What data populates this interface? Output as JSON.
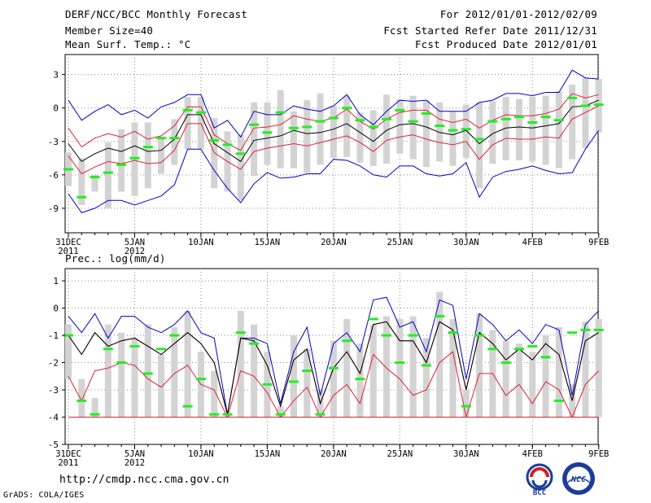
{
  "header": {
    "title": "DERF/NCC/BCC Monthly Forecast",
    "member_size": "Member Size=40",
    "variable": "Mean Surf. Temp.: °C",
    "period": "For 2012/01/01-2012/02/09",
    "start_date": "Fcst Started Refer Date 2011/12/31",
    "produced_date": "Fcst Produced Date 2012/01/01"
  },
  "precip_label": "Prec.: log(mm/d)",
  "footer": {
    "url": "http://cmdp.ncc.cma.gov.cn",
    "credit": "GrADS: COLA/IGES"
  },
  "logos": {
    "bcc": "BCC",
    "ncc": "NCC"
  },
  "colors": {
    "envelope": "#0000c8",
    "spread": "#e0203a",
    "mean": "#000000",
    "obs": "#22ee22",
    "bar": "#d3d3d3",
    "grid": "#888888"
  },
  "chart_data": [
    {
      "type": "line",
      "title": "Mean Surf. Temp.: °C",
      "x_days": [
        0,
        1,
        2,
        3,
        4,
        5,
        6,
        7,
        8,
        9,
        10,
        11,
        12,
        13,
        14,
        15,
        16,
        17,
        18,
        19,
        20,
        21,
        22,
        23,
        24,
        25,
        26,
        27,
        28,
        29,
        30,
        31,
        32,
        33,
        34,
        35,
        36,
        37,
        38,
        39,
        40
      ],
      "x_ticks": [
        {
          "day": 0,
          "label": "31DEC",
          "sublabel": "2011"
        },
        {
          "day": 5,
          "label": "5JAN",
          "sublabel": "2012"
        },
        {
          "day": 10,
          "label": "10JAN",
          "sublabel": ""
        },
        {
          "day": 15,
          "label": "15JAN",
          "sublabel": ""
        },
        {
          "day": 20,
          "label": "20JAN",
          "sublabel": ""
        },
        {
          "day": 25,
          "label": "25JAN",
          "sublabel": ""
        },
        {
          "day": 30,
          "label": "30JAN",
          "sublabel": ""
        },
        {
          "day": 35,
          "label": "4FEB",
          "sublabel": ""
        },
        {
          "day": 40,
          "label": "9FEB",
          "sublabel": ""
        }
      ],
      "yticks": [
        3,
        0,
        -3,
        -6,
        -9
      ],
      "ylim": [
        -11.2,
        4.8
      ],
      "series": [
        {
          "name": "ensemble max",
          "color": "#0000c8",
          "values": [
            0.7,
            -1.1,
            -0.3,
            0.3,
            -0.6,
            -0.2,
            -0.9,
            0.1,
            0.5,
            1.2,
            1.2,
            -1.8,
            -1.1,
            -2.6,
            -0.3,
            -0.6,
            -0.6,
            0.2,
            -0.1,
            -0.3,
            0.2,
            1.2,
            -0.6,
            -1.5,
            -0.3,
            0.7,
            0.6,
            0.7,
            -0.3,
            -0.3,
            -0.3,
            0.5,
            0.7,
            1.3,
            1.3,
            1.1,
            1.4,
            1.4,
            3.4,
            2.7,
            2.6
          ]
        },
        {
          "name": "ensemble min",
          "color": "#0000c8",
          "values": [
            -7.7,
            -9.4,
            -9.0,
            -8.3,
            -8.3,
            -8.7,
            -8.3,
            -7.9,
            -6.9,
            -3.7,
            -3.7,
            -5.6,
            -7.2,
            -8.5,
            -6.8,
            -5.8,
            -6.3,
            -6.2,
            -5.9,
            -5.9,
            -4.6,
            -4.7,
            -5.2,
            -6.0,
            -6.2,
            -5.2,
            -5.2,
            -5.9,
            -6.1,
            -5.9,
            -4.9,
            -8.0,
            -6.2,
            -5.7,
            -5.5,
            -5.2,
            -5.6,
            -5.9,
            -5.8,
            -3.7,
            -2.0
          ]
        },
        {
          "name": "upper spread",
          "color": "#e0203a",
          "values": [
            -1.8,
            -3.5,
            -2.7,
            -2.3,
            -2.6,
            -2.1,
            -2.8,
            -2.5,
            -1.6,
            0.1,
            0.1,
            -2.4,
            -3.2,
            -3.8,
            -1.8,
            -1.7,
            -1.5,
            -0.7,
            -1.0,
            -1.2,
            -0.9,
            -0.1,
            -1.2,
            -1.9,
            -1.0,
            -0.4,
            -0.2,
            -0.2,
            -1.0,
            -1.3,
            -1.0,
            -1.8,
            -1.1,
            -0.6,
            -0.7,
            -0.7,
            -0.5,
            -0.1,
            1.3,
            0.9,
            1.2
          ]
        },
        {
          "name": "lower spread",
          "color": "#e0203a",
          "values": [
            -4.3,
            -5.9,
            -5.3,
            -4.8,
            -5.0,
            -4.7,
            -5.0,
            -4.9,
            -3.8,
            -1.4,
            -1.4,
            -4.0,
            -4.8,
            -5.5,
            -3.9,
            -3.6,
            -3.4,
            -3.2,
            -3.4,
            -3.1,
            -2.8,
            -2.5,
            -3.1,
            -3.9,
            -2.9,
            -2.6,
            -2.4,
            -2.8,
            -3.1,
            -3.3,
            -3.0,
            -4.6,
            -3.3,
            -2.7,
            -2.8,
            -2.8,
            -2.6,
            -2.7,
            -1.0,
            -0.4,
            0.2
          ]
        },
        {
          "name": "ensemble mean",
          "color": "#000000",
          "values": [
            -3.2,
            -4.8,
            -4.1,
            -3.6,
            -3.9,
            -3.4,
            -3.9,
            -3.8,
            -2.8,
            -0.6,
            -0.6,
            -3.2,
            -4.0,
            -4.8,
            -2.9,
            -2.7,
            -2.5,
            -2.0,
            -2.3,
            -2.2,
            -1.9,
            -1.4,
            -2.2,
            -3.0,
            -2.0,
            -1.5,
            -1.4,
            -1.7,
            -2.2,
            -2.4,
            -2.0,
            -3.2,
            -2.3,
            -1.8,
            -1.7,
            -1.8,
            -1.6,
            -1.4,
            0.1,
            0.2,
            0.7
          ]
        },
        {
          "name": "observation",
          "color": "#22ee22",
          "values": [
            -5.5,
            -8.0,
            -6.2,
            -5.8,
            -5.1,
            -4.5,
            -3.5,
            -2.7,
            -2.7,
            -0.2,
            -0.4,
            -2.9,
            -3.3,
            -4.1,
            -1.5,
            -2.2,
            -0.4,
            -1.8,
            -1.7,
            -1.2,
            -0.9,
            0.0,
            -1.1,
            -1.7,
            -1.0,
            -0.2,
            -1.2,
            -0.5,
            -1.6,
            -2.0,
            -1.9,
            -2.8,
            -1.2,
            -1.0,
            -0.8,
            -1.3,
            -0.8,
            -1.1,
            0.9,
            0.2,
            0.3
          ]
        }
      ],
      "bars": {
        "lo": [
          -7.0,
          -8.7,
          -7.5,
          -9.0,
          -7.5,
          -7.9,
          -7.2,
          -5.9,
          -5.1,
          -3.7,
          -3.7,
          -7.2,
          -7.5,
          -8.3,
          -6.1,
          -5.1,
          -5.4,
          -5.4,
          -5.8,
          -5.1,
          -4.5,
          -4.4,
          -4.9,
          -5.2,
          -5.0,
          -4.1,
          -4.6,
          -5.3,
          -4.8,
          -5.2,
          -4.5,
          -7.2,
          -5.0,
          -4.7,
          -4.7,
          -4.8,
          -5.1,
          -5.4,
          -4.6,
          -3.6,
          -2.2
        ],
        "hi": [
          -4.0,
          -4.5,
          -6.0,
          -3.1,
          -1.9,
          -1.3,
          -1.3,
          -2.6,
          -1.0,
          1.0,
          1.0,
          -0.9,
          -2.1,
          -2.4,
          0.5,
          0.5,
          1.6,
          -0.3,
          0.7,
          1.3,
          0.2,
          1.1,
          -0.4,
          -0.2,
          1.2,
          0.8,
          1.1,
          0.7,
          0.5,
          -0.3,
          0.3,
          0.5,
          0.6,
          1.0,
          0.8,
          1.0,
          1.1,
          1.5,
          2.1,
          2.7,
          2.6
        ]
      }
    },
    {
      "type": "line",
      "title": "Prec.: log(mm/d)",
      "x_days": [
        0,
        1,
        2,
        3,
        4,
        5,
        6,
        7,
        8,
        9,
        10,
        11,
        12,
        13,
        14,
        15,
        16,
        17,
        18,
        19,
        20,
        21,
        22,
        23,
        24,
        25,
        26,
        27,
        28,
        29,
        30,
        31,
        32,
        33,
        34,
        35,
        36,
        37,
        38,
        39,
        40
      ],
      "x_ticks": [
        {
          "day": 0,
          "label": "31DEC",
          "sublabel": "2011"
        },
        {
          "day": 5,
          "label": "5JAN",
          "sublabel": "2012"
        },
        {
          "day": 10,
          "label": "10JAN",
          "sublabel": ""
        },
        {
          "day": 15,
          "label": "15JAN",
          "sublabel": ""
        },
        {
          "day": 20,
          "label": "20JAN",
          "sublabel": ""
        },
        {
          "day": 25,
          "label": "25JAN",
          "sublabel": ""
        },
        {
          "day": 30,
          "label": "30JAN",
          "sublabel": ""
        },
        {
          "day": 35,
          "label": "4FEB",
          "sublabel": ""
        },
        {
          "day": 40,
          "label": "9FEB",
          "sublabel": ""
        }
      ],
      "yticks": [
        1,
        0,
        -1,
        -2,
        -3,
        -4,
        -5
      ],
      "ylim": [
        -5,
        1.45
      ],
      "baseline": -4,
      "series": [
        {
          "name": "ensemble max",
          "color": "#0000c8",
          "values": [
            -0.3,
            -0.9,
            -0.2,
            -1.1,
            -0.3,
            -0.3,
            -0.7,
            -0.9,
            -0.6,
            -0.1,
            -0.9,
            -1.1,
            -3.9,
            -1.1,
            -1.1,
            -1.3,
            -3.5,
            -1.6,
            -0.7,
            -3.2,
            -1.3,
            -0.9,
            -1.6,
            0.3,
            0.4,
            -0.7,
            -0.5,
            -1.6,
            0.3,
            0.1,
            -2.6,
            -0.2,
            -0.6,
            -1.2,
            -0.8,
            -1.3,
            -0.6,
            -0.8,
            -3.2,
            -0.6,
            -0.1
          ]
        },
        {
          "name": "upper spread",
          "color": "#e0203a",
          "values": [
            -1.0,
            -1.7,
            -0.9,
            -1.4,
            -1.2,
            -1.1,
            -1.4,
            -1.7,
            -1.3,
            -0.9,
            -1.3,
            -2.0,
            -3.9,
            -1.1,
            -1.2,
            -2.1,
            -3.6,
            -1.9,
            -1.5,
            -3.5,
            -2.2,
            -1.6,
            -2.4,
            -0.6,
            -0.5,
            -1.2,
            -1.2,
            -2.0,
            -0.5,
            -0.8,
            -3.0,
            -0.9,
            -1.3,
            -1.9,
            -1.5,
            -1.9,
            -1.3,
            -1.7,
            -3.4,
            -1.2,
            -0.9
          ]
        },
        {
          "name": "lower spread",
          "color": "#e0203a",
          "values": [
            -2.5,
            -3.4,
            -2.3,
            -2.2,
            -2.0,
            -2.1,
            -2.6,
            -2.9,
            -2.4,
            -2.1,
            -2.8,
            -3.0,
            -4.0,
            -2.3,
            -2.5,
            -3.1,
            -4.0,
            -3.4,
            -2.9,
            -4.0,
            -3.2,
            -2.8,
            -3.5,
            -1.7,
            -2.2,
            -2.6,
            -3.2,
            -3.0,
            -2.0,
            -1.6,
            -4.0,
            -2.4,
            -2.4,
            -3.2,
            -2.8,
            -3.5,
            -2.7,
            -3.0,
            -4.0,
            -2.8,
            -2.3
          ]
        },
        {
          "name": "ensemble mean",
          "color": "#000000",
          "values": [
            -1.0,
            -1.7,
            -0.9,
            -1.4,
            -1.2,
            -1.1,
            -1.4,
            -1.7,
            -1.3,
            -0.9,
            -1.3,
            -2.0,
            -3.9,
            -1.1,
            -1.2,
            -2.1,
            -3.6,
            -1.9,
            -1.5,
            -3.5,
            -2.2,
            -1.6,
            -2.4,
            -0.6,
            -0.5,
            -1.2,
            -1.2,
            -2.0,
            -0.5,
            -0.8,
            -3.0,
            -0.9,
            -1.3,
            -1.9,
            -1.5,
            -1.9,
            -1.3,
            -1.7,
            -3.4,
            -1.2,
            -0.9
          ]
        },
        {
          "name": "observation",
          "color": "#22ee22",
          "values": [
            -1.0,
            -3.4,
            -3.9,
            -1.5,
            -2.0,
            -1.4,
            -2.4,
            -1.5,
            -1.0,
            -3.6,
            -2.6,
            -3.9,
            -3.9,
            -0.9,
            -1.3,
            -2.8,
            -3.9,
            -2.7,
            -2.3,
            -3.9,
            -2.2,
            -1.2,
            -2.6,
            -0.4,
            -1.0,
            -2.0,
            -1.0,
            -2.1,
            -0.3,
            -0.9,
            -3.6,
            -1.0,
            -1.5,
            -2.0,
            -1.5,
            -1.4,
            -1.8,
            -3.4,
            -0.9,
            -0.8,
            -0.8
          ]
        }
      ],
      "bars": {
        "lo": [
          -2.6,
          -4.0,
          -4.0,
          -4.0,
          -4.0,
          -4.0,
          -4.0,
          -4.0,
          -4.0,
          -4.0,
          -4.0,
          -4.0,
          -4.0,
          -4.0,
          -4.0,
          -4.0,
          -4.0,
          -4.0,
          -4.0,
          -4.0,
          -4.0,
          -4.0,
          -4.0,
          -4.0,
          -4.0,
          -4.0,
          -4.0,
          -4.0,
          -4.0,
          -4.0,
          -4.0,
          -4.0,
          -4.0,
          -4.0,
          -4.0,
          -4.0,
          -4.0,
          -4.0,
          -4.0,
          -4.0,
          -4.0
        ],
        "hi": [
          -0.6,
          -2.6,
          -3.3,
          -0.6,
          -0.9,
          -1.1,
          -0.6,
          -1.7,
          -0.7,
          -0.1,
          -1.6,
          -2.3,
          -3.9,
          -0.1,
          -0.6,
          -1.6,
          -3.6,
          -1.0,
          -1.5,
          -3.0,
          -1.2,
          -0.4,
          -1.3,
          -0.6,
          -0.3,
          -0.4,
          -0.3,
          -1.1,
          0.6,
          -0.4,
          -3.0,
          -0.2,
          -0.8,
          -1.2,
          -1.3,
          -1.6,
          -1.0,
          -0.7,
          -2.8,
          -0.5,
          -0.4
        ]
      }
    }
  ]
}
